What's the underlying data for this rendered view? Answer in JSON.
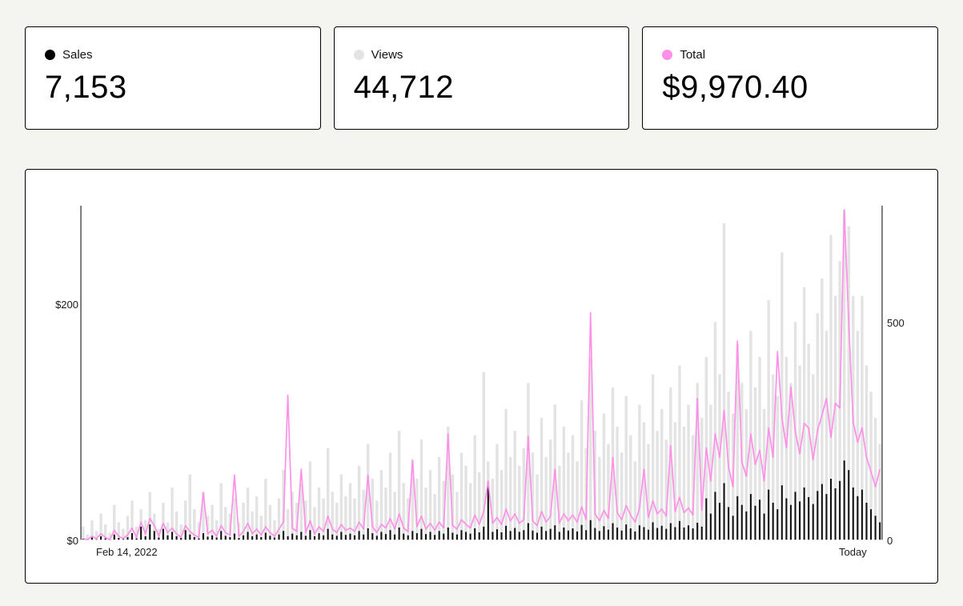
{
  "cards": [
    {
      "label": "Sales",
      "value": "7,153",
      "dot_color": "#000000"
    },
    {
      "label": "Views",
      "value": "44,712",
      "dot_color": "#e3e3e3"
    },
    {
      "label": "Total",
      "value": "$9,970.40",
      "dot_color": "#ff90e8"
    }
  ],
  "colors": {
    "page_background": "#f4f4f0",
    "panel_background": "#ffffff",
    "border": "#000000",
    "accent_pink": "#ff90e8",
    "bar_gray": "#e3e3e3",
    "bar_black": "#111111"
  },
  "chart_data": {
    "type": "bar+line",
    "title": "",
    "x_start_label": "Feb 14, 2022",
    "x_end_label": "Today",
    "left_axis": {
      "label": "dollars",
      "ticks": [
        "$0",
        "$200"
      ],
      "range_visible": [
        0,
        280
      ]
    },
    "right_axis": {
      "label": "count",
      "ticks": [
        "0",
        "500"
      ],
      "range_visible": [
        0,
        756
      ]
    },
    "legend_position": "cards-above",
    "grid": false,
    "series": [
      {
        "name": "Views",
        "type": "bar",
        "axis": "right",
        "color": "#e3e3e3",
        "values": [
          30,
          12,
          45,
          20,
          60,
          35,
          15,
          80,
          40,
          25,
          55,
          90,
          30,
          70,
          45,
          110,
          60,
          25,
          85,
          40,
          120,
          65,
          35,
          90,
          150,
          70,
          40,
          110,
          55,
          80,
          45,
          130,
          75,
          60,
          95,
          40,
          85,
          120,
          65,
          100,
          55,
          140,
          80,
          45,
          95,
          160,
          70,
          110,
          85,
          130,
          90,
          180,
          75,
          120,
          95,
          210,
          110,
          85,
          150,
          100,
          130,
          95,
          170,
          115,
          220,
          140,
          90,
          160,
          120,
          200,
          110,
          250,
          130,
          95,
          180,
          140,
          230,
          120,
          160,
          105,
          190,
          135,
          260,
          150,
          110,
          200,
          170,
          130,
          240,
          155,
          385,
          180,
          140,
          220,
          160,
          300,
          190,
          250,
          170,
          210,
          360,
          200,
          150,
          280,
          190,
          230,
          310,
          170,
          260,
          200,
          240,
          180,
          320,
          210,
          420,
          250,
          190,
          290,
          220,
          350,
          260,
          200,
          330,
          240,
          180,
          310,
          270,
          220,
          380,
          250,
          300,
          230,
          350,
          270,
          400,
          260,
          310,
          240,
          360,
          280,
          420,
          310,
          500,
          380,
          727,
          340,
          290,
          450,
          360,
          300,
          480,
          350,
          420,
          300,
          550,
          380,
          330,
          660,
          420,
          360,
          500,
          400,
          580,
          450,
          380,
          520,
          600,
          480,
          700,
          560,
          640,
          760,
          720,
          560,
          480,
          560,
          400,
          340,
          280,
          220
        ]
      },
      {
        "name": "Sales",
        "type": "bar",
        "axis": "right",
        "color": "#111111",
        "values": [
          2,
          0,
          5,
          1,
          8,
          3,
          0,
          12,
          4,
          2,
          6,
          15,
          3,
          30,
          8,
          35,
          20,
          5,
          25,
          10,
          18,
          8,
          4,
          22,
          12,
          6,
          3,
          15,
          7,
          10,
          5,
          20,
          9,
          6,
          14,
          4,
          10,
          18,
          8,
          12,
          6,
          16,
          9,
          5,
          12,
          20,
          8,
          14,
          10,
          18,
          9,
          22,
          8,
          15,
          10,
          25,
          12,
          9,
          18,
          11,
          14,
          10,
          20,
          12,
          26,
          15,
          9,
          18,
          13,
          22,
          12,
          28,
          14,
          10,
          20,
          15,
          25,
          13,
          18,
          11,
          20,
          14,
          28,
          16,
          12,
          22,
          18,
          14,
          26,
          17,
          30,
          132,
          18,
          24,
          17,
          32,
          20,
          27,
          18,
          22,
          38,
          21,
          16,
          30,
          20,
          25,
          33,
          18,
          28,
          21,
          26,
          19,
          34,
          22,
          45,
          27,
          20,
          31,
          23,
          38,
          28,
          21,
          35,
          26,
          19,
          33,
          29,
          23,
          40,
          27,
          32,
          25,
          38,
          29,
          43,
          28,
          33,
          26,
          39,
          30,
          95,
          60,
          110,
          85,
          130,
          75,
          55,
          100,
          80,
          65,
          105,
          78,
          92,
          60,
          115,
          85,
          70,
          125,
          95,
          80,
          110,
          88,
          120,
          98,
          82,
          112,
          128,
          105,
          140,
          118,
          135,
          182,
          160,
          120,
          100,
          115,
          85,
          70,
          55,
          40
        ]
      },
      {
        "name": "Total",
        "type": "line",
        "axis": "left",
        "color": "#ff90e8",
        "values": [
          1,
          0,
          3,
          1,
          5,
          2,
          0,
          8,
          3,
          1,
          4,
          10,
          2,
          15,
          5,
          18,
          12,
          3,
          14,
          6,
          10,
          5,
          2,
          12,
          7,
          4,
          2,
          40,
          5,
          8,
          3,
          12,
          6,
          4,
          55,
          3,
          7,
          14,
          5,
          9,
          4,
          11,
          6,
          3,
          9,
          15,
          123,
          10,
          7,
          60,
          6,
          16,
          5,
          11,
          7,
          20,
          9,
          6,
          13,
          8,
          10,
          7,
          15,
          9,
          55,
          11,
          6,
          13,
          10,
          18,
          9,
          22,
          10,
          7,
          68,
          11,
          20,
          9,
          14,
          8,
          15,
          10,
          90,
          12,
          9,
          17,
          13,
          10,
          21,
          13,
          24,
          50,
          14,
          19,
          13,
          26,
          16,
          22,
          14,
          17,
          88,
          16,
          12,
          24,
          15,
          20,
          60,
          14,
          22,
          16,
          21,
          15,
          28,
          17,
          193,
          22,
          16,
          25,
          18,
          70,
          23,
          17,
          29,
          21,
          15,
          27,
          60,
          19,
          33,
          22,
          26,
          20,
          80,
          24,
          36,
          23,
          27,
          21,
          120,
          25,
          78,
          50,
          90,
          70,
          110,
          62,
          45,
          169,
          66,
          54,
          90,
          64,
          76,
          50,
          95,
          70,
          160,
          104,
          78,
          130,
          92,
          73,
          99,
          95,
          68,
          93,
          106,
          120,
          87,
          116,
          112,
          280,
          185,
          100,
          83,
          95,
          70,
          58,
          45,
          60
        ]
      }
    ]
  }
}
